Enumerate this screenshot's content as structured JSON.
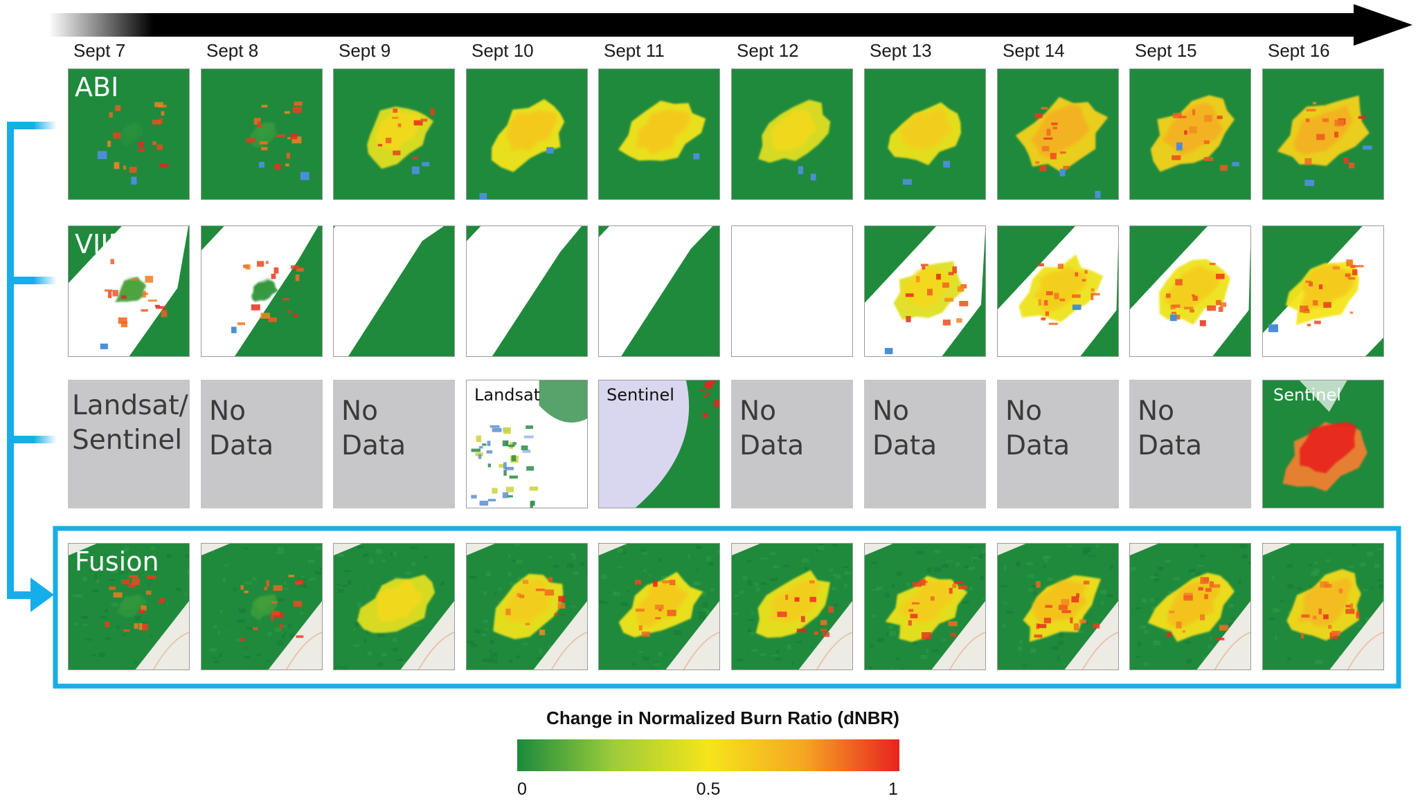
{
  "dates": [
    "Sept 7",
    "Sept 8",
    "Sept 9",
    "Sept 10",
    "Sept 11",
    "Sept 12",
    "Sept 13",
    "Sept 14",
    "Sept 15",
    "Sept 16"
  ],
  "rows": [
    {
      "id": "abi",
      "label": "ABI",
      "panels": [
        {
          "burn": 0.03,
          "fire": 0.95,
          "clouds": 0,
          "blue": 0.3
        },
        {
          "burn": 0.06,
          "fire": 0.9,
          "clouds": 0,
          "blue": 0.2
        },
        {
          "burn": 0.55,
          "fire": 0.6,
          "clouds": 0,
          "blue": 0.3
        },
        {
          "burn": 0.62,
          "fire": 0.4,
          "clouds": 0,
          "blue": 0.2
        },
        {
          "burn": 0.62,
          "fire": 0.35,
          "clouds": 0,
          "blue": 0.1
        },
        {
          "burn": 0.55,
          "fire": 0.42,
          "clouds": 0,
          "blue": 0.2
        },
        {
          "burn": 0.6,
          "fire": 0.45,
          "clouds": 0,
          "blue": 0.3
        },
        {
          "burn": 0.72,
          "fire": 0.7,
          "clouds": 0,
          "blue": 0.2
        },
        {
          "burn": 0.72,
          "fire": 0.66,
          "clouds": 0,
          "blue": 0.2
        },
        {
          "burn": 0.72,
          "fire": 0.68,
          "clouds": 0,
          "blue": 0.3
        }
      ]
    },
    {
      "id": "viirs",
      "label": "VIIRS",
      "panels": [
        {
          "burn": 0.1,
          "fire": 0.9,
          "clouds": 0.5,
          "blue": 0.1
        },
        {
          "burn": 0.05,
          "fire": 0.9,
          "clouds": 0.75,
          "blue": 0.1
        },
        {
          "burn": 0.0,
          "fire": 0.0,
          "clouds": 0.92,
          "blue": 0
        },
        {
          "burn": 0.0,
          "fire": 0.0,
          "clouds": 0.82,
          "blue": 0
        },
        {
          "burn": 0.0,
          "fire": 0.0,
          "clouds": 0.85,
          "blue": 0
        },
        {
          "burn": 0.0,
          "fire": 0.0,
          "clouds": 1.0,
          "blue": 0
        },
        {
          "burn": 0.55,
          "fire": 0.9,
          "clouds": 0.35,
          "blue": 0.1
        },
        {
          "burn": 0.6,
          "fire": 1.0,
          "clouds": 0.3,
          "blue": 0.1
        },
        {
          "burn": 0.6,
          "fire": 1.0,
          "clouds": 0.3,
          "blue": 0.1
        },
        {
          "burn": 0.62,
          "fire": 1.0,
          "clouds": 0.12,
          "blue": 0.1
        }
      ]
    },
    {
      "id": "landsat-sentinel",
      "label": "Landsat/\nSentinel",
      "label_lines": [
        "Landsat/",
        "Sentinel"
      ],
      "panels": [
        {
          "nodata": true
        },
        {
          "nodata": true,
          "text": [
            "No",
            "Data"
          ]
        },
        {
          "nodata": true,
          "text": [
            "No",
            "Data"
          ]
        },
        {
          "sensor": "Landsat",
          "mostly_cloud": true
        },
        {
          "sensor": "Sentinel",
          "mostly_cloud": true
        },
        {
          "nodata": true,
          "text": [
            "No",
            "Data"
          ]
        },
        {
          "nodata": true,
          "text": [
            "No",
            "Data"
          ]
        },
        {
          "nodata": true,
          "text": [
            "No",
            "Data"
          ]
        },
        {
          "nodata": true,
          "text": [
            "No",
            "Data"
          ]
        },
        {
          "sensor": "Sentinel",
          "mostly_cloud": false
        }
      ]
    },
    {
      "id": "fusion",
      "label": "Fusion",
      "panels": [
        {
          "burn": 0.05,
          "fire": 0.9
        },
        {
          "burn": 0.08,
          "fire": 0.95
        },
        {
          "burn": 0.55,
          "fire": 0.5
        },
        {
          "burn": 0.6,
          "fire": 0.7
        },
        {
          "burn": 0.62,
          "fire": 0.7
        },
        {
          "burn": 0.6,
          "fire": 0.72
        },
        {
          "burn": 0.6,
          "fire": 0.85
        },
        {
          "burn": 0.65,
          "fire": 0.9
        },
        {
          "burn": 0.65,
          "fire": 0.92
        },
        {
          "burn": 0.68,
          "fire": 0.95
        }
      ]
    }
  ],
  "colorbar": {
    "title": "Change in Normalized Burn Ratio (dNBR)",
    "ticks": [
      "0",
      "0.5",
      "1"
    ],
    "colors": [
      "#1a8a3c",
      "#9ccc3a",
      "#f5e51a",
      "#f5a623",
      "#e8231f"
    ]
  },
  "colors": {
    "forest": "#1f8a3c",
    "highlight_box": "#16aee8",
    "flow_arrow": "#16aee8",
    "nodata_panel": "#c7c7c9",
    "timeline_arrow": "#000000",
    "water": "#4a8fd6"
  }
}
